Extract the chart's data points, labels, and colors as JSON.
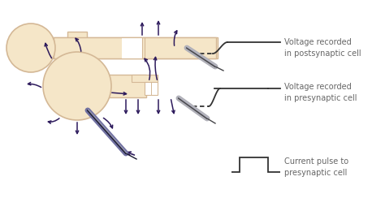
{
  "bg_color": "#ffffff",
  "cell_color": "#f5e6c8",
  "cell_outline": "#d4b896",
  "arrow_color": "#2d1a5c",
  "text_color": "#666666",
  "trace_color": "#333333",
  "labels": [
    "Current pulse to\npresynaptic cell",
    "Voltage recorded\nin presynaptic cell",
    "Voltage recorded\nin postsynaptic cell"
  ],
  "font_size": 7.0,
  "figw": 4.74,
  "figh": 2.44,
  "dpi": 100
}
